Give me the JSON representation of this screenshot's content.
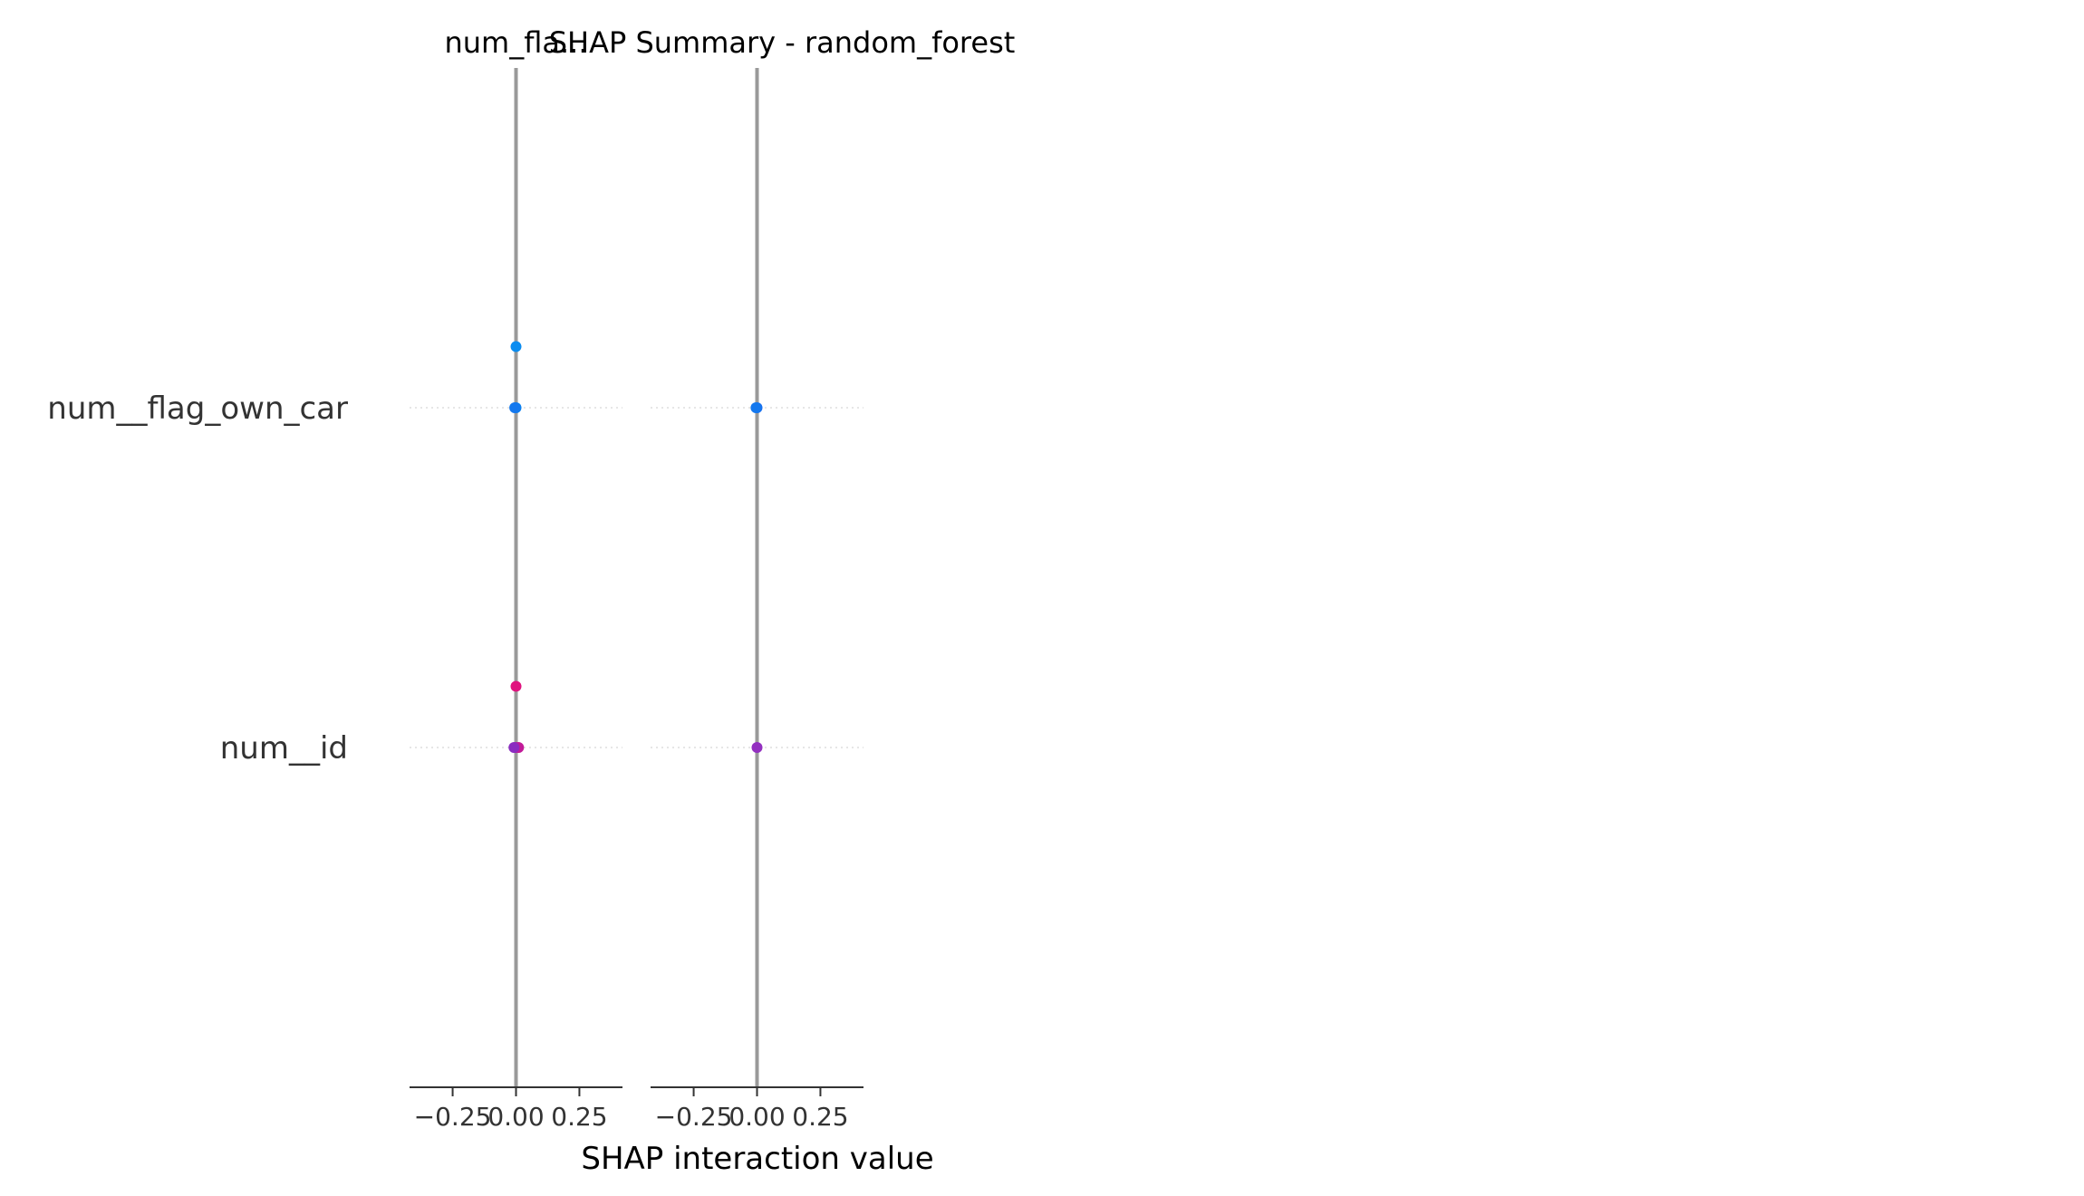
{
  "chart_data": {
    "type": "scatter",
    "subtype": "shap-interaction-summary",
    "title": "SHAP Summary - random_forest",
    "xlabel": "SHAP interaction value",
    "features": [
      "num__flag_own_car",
      "num__id"
    ],
    "colors": {
      "axis_line": "#999999",
      "grid": "#dddddd",
      "text": "#333333",
      "low": "#008bfb",
      "high": "#ff0052"
    },
    "xlim": [
      -0.42,
      0.42
    ],
    "xticks": [
      -0.25,
      0.0,
      0.25
    ],
    "xtick_labels": [
      "−0.25",
      "0.00",
      "0.25"
    ],
    "panels": [
      {
        "title": "num_fla...",
        "rows": [
          {
            "feature": "num__flag_own_car",
            "points": [
              {
                "x": 0.0,
                "offset": 0.18,
                "color": "#0a8cf0"
              },
              {
                "x": 0.0,
                "offset": 0.0,
                "color": "#0a80f0"
              },
              {
                "x": -0.005,
                "offset": 0.0,
                "color": "#1478ee"
              }
            ]
          },
          {
            "feature": "num__id",
            "points": [
              {
                "x": 0.0,
                "offset": 0.18,
                "color": "#e0137f"
              },
              {
                "x": 0.0,
                "offset": 0.0,
                "color": "#b01fa6"
              },
              {
                "x": 0.01,
                "offset": 0.0,
                "color": "#c21a98"
              },
              {
                "x": -0.008,
                "offset": 0.0,
                "color": "#8a2cc0"
              }
            ]
          }
        ]
      },
      {
        "title": "",
        "rows": [
          {
            "feature": "num__flag_own_car",
            "points": [
              {
                "x": 0.0,
                "offset": 0.0,
                "color": "#1a6ff0"
              },
              {
                "x": -0.004,
                "offset": 0.0,
                "color": "#1478ee"
              }
            ]
          },
          {
            "feature": "num__id",
            "points": [
              {
                "x": 0.0,
                "offset": 0.0,
                "color": "#9330c0"
              }
            ]
          }
        ]
      }
    ]
  }
}
